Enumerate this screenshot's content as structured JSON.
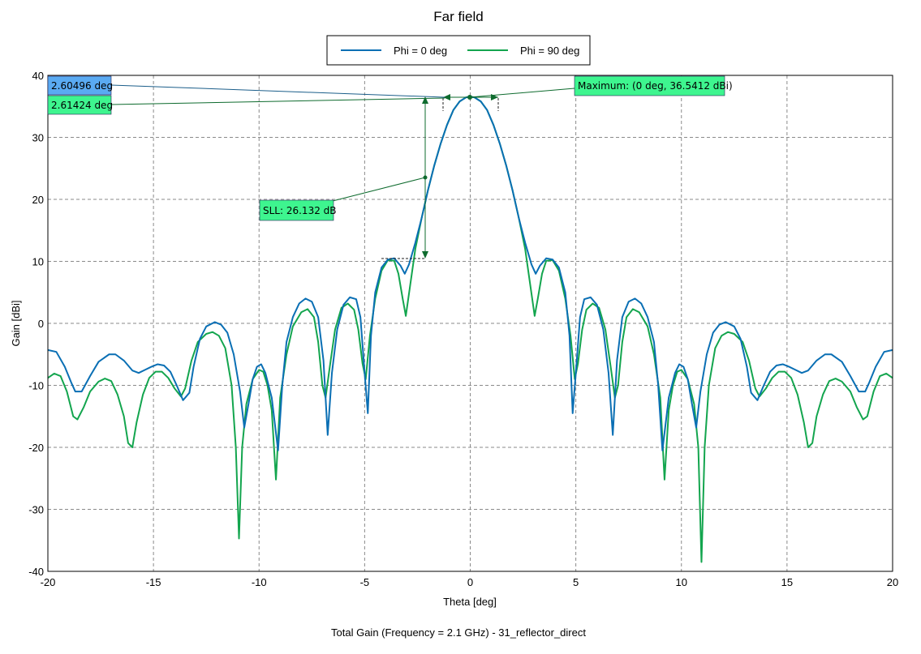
{
  "chart_data": {
    "type": "line",
    "title": "Far field",
    "xlabel": "Theta [deg]",
    "ylabel": "Gain [dBi]",
    "footer": "Total Gain (Frequency = 2.1 GHz) - 31_reflector_direct",
    "xlim": [
      -20,
      20
    ],
    "ylim": [
      -40,
      40
    ],
    "xticks": [
      -20,
      -15,
      -10,
      -5,
      0,
      5,
      10,
      15,
      20
    ],
    "yticks": [
      -40,
      -30,
      -20,
      -10,
      0,
      10,
      20,
      30,
      40
    ],
    "grid": true,
    "legend_position": "top-center",
    "series": [
      {
        "name": "Phi = 0 deg",
        "color": "#0a6fb4",
        "points": [
          [
            -20,
            -4.3
          ],
          [
            -19.6,
            -4.6
          ],
          [
            -19.2,
            -7
          ],
          [
            -18.9,
            -9.5
          ],
          [
            -18.7,
            -11
          ],
          [
            -18.4,
            -11
          ],
          [
            -18.0,
            -8.5
          ],
          [
            -17.6,
            -6.2
          ],
          [
            -17.1,
            -5
          ],
          [
            -16.8,
            -5
          ],
          [
            -16.4,
            -6
          ],
          [
            -16.0,
            -7.6
          ],
          [
            -15.7,
            -8
          ],
          [
            -15.4,
            -7.5
          ],
          [
            -15.1,
            -7
          ],
          [
            -14.8,
            -6.6
          ],
          [
            -14.5,
            -6.8
          ],
          [
            -14.2,
            -7.8
          ],
          [
            -13.9,
            -10
          ],
          [
            -13.6,
            -12.4
          ],
          [
            -13.3,
            -11.2
          ],
          [
            -13.1,
            -7
          ],
          [
            -12.8,
            -2.5
          ],
          [
            -12.5,
            -0.5
          ],
          [
            -12.1,
            0.2
          ],
          [
            -11.8,
            -0.2
          ],
          [
            -11.5,
            -1.5
          ],
          [
            -11.2,
            -5
          ],
          [
            -10.9,
            -11
          ],
          [
            -10.7,
            -16.8
          ],
          [
            -10.5,
            -13
          ],
          [
            -10.3,
            -9
          ],
          [
            -10.1,
            -7
          ],
          [
            -9.9,
            -6.6
          ],
          [
            -9.7,
            -8
          ],
          [
            -9.4,
            -12
          ],
          [
            -9.1,
            -20.5
          ],
          [
            -8.9,
            -10
          ],
          [
            -8.7,
            -3
          ],
          [
            -8.4,
            1
          ],
          [
            -8.1,
            3.2
          ],
          [
            -7.8,
            4
          ],
          [
            -7.5,
            3.5
          ],
          [
            -7.2,
            1
          ],
          [
            -6.95,
            -6
          ],
          [
            -6.75,
            -18
          ],
          [
            -6.55,
            -8
          ],
          [
            -6.3,
            -1
          ],
          [
            -6.0,
            3
          ],
          [
            -5.7,
            4.2
          ],
          [
            -5.4,
            3.9
          ],
          [
            -5.2,
            1
          ],
          [
            -5.0,
            -8
          ],
          [
            -4.85,
            -14.5
          ],
          [
            -4.7,
            -2
          ],
          [
            -4.5,
            5
          ],
          [
            -4.2,
            9
          ],
          [
            -3.9,
            10.3
          ],
          [
            -3.6,
            10.5
          ],
          [
            -3.3,
            9.3
          ],
          [
            -3.1,
            8
          ],
          [
            -2.9,
            9.5
          ],
          [
            -2.6,
            13
          ],
          [
            -2.3,
            17
          ],
          [
            -2.0,
            21.5
          ],
          [
            -1.7,
            25.5
          ],
          [
            -1.4,
            29
          ],
          [
            -1.1,
            32
          ],
          [
            -0.8,
            34.4
          ],
          [
            -0.5,
            35.8
          ],
          [
            -0.2,
            36.45
          ],
          [
            0,
            36.54
          ],
          [
            0.2,
            36.45
          ],
          [
            0.5,
            35.8
          ],
          [
            0.8,
            34.4
          ],
          [
            1.1,
            32
          ],
          [
            1.4,
            29
          ],
          [
            1.7,
            25.5
          ],
          [
            2.0,
            21.5
          ],
          [
            2.3,
            17
          ],
          [
            2.6,
            13
          ],
          [
            2.9,
            9.5
          ],
          [
            3.1,
            8
          ],
          [
            3.3,
            9.3
          ],
          [
            3.6,
            10.5
          ],
          [
            3.9,
            10.3
          ],
          [
            4.2,
            9
          ],
          [
            4.5,
            5
          ],
          [
            4.7,
            -2
          ],
          [
            4.85,
            -14.5
          ],
          [
            5.0,
            -8
          ],
          [
            5.2,
            1
          ],
          [
            5.4,
            3.9
          ],
          [
            5.7,
            4.2
          ],
          [
            6.0,
            3
          ],
          [
            6.3,
            -1
          ],
          [
            6.55,
            -8
          ],
          [
            6.75,
            -18
          ],
          [
            6.95,
            -6
          ],
          [
            7.2,
            1
          ],
          [
            7.5,
            3.5
          ],
          [
            7.8,
            4
          ],
          [
            8.1,
            3.2
          ],
          [
            8.4,
            1
          ],
          [
            8.7,
            -3
          ],
          [
            8.9,
            -10
          ],
          [
            9.1,
            -20.5
          ],
          [
            9.4,
            -12
          ],
          [
            9.7,
            -8
          ],
          [
            9.9,
            -6.6
          ],
          [
            10.1,
            -7
          ],
          [
            10.3,
            -9
          ],
          [
            10.5,
            -13
          ],
          [
            10.7,
            -16.8
          ],
          [
            10.9,
            -11
          ],
          [
            11.2,
            -5
          ],
          [
            11.5,
            -1.5
          ],
          [
            11.8,
            -0.2
          ],
          [
            12.1,
            0.2
          ],
          [
            12.5,
            -0.5
          ],
          [
            12.8,
            -2.5
          ],
          [
            13.1,
            -7
          ],
          [
            13.3,
            -11.2
          ],
          [
            13.6,
            -12.4
          ],
          [
            13.9,
            -10
          ],
          [
            14.2,
            -7.8
          ],
          [
            14.5,
            -6.8
          ],
          [
            14.8,
            -6.6
          ],
          [
            15.1,
            -7
          ],
          [
            15.4,
            -7.5
          ],
          [
            15.7,
            -8
          ],
          [
            16.0,
            -7.6
          ],
          [
            16.4,
            -6
          ],
          [
            16.8,
            -5
          ],
          [
            17.1,
            -5
          ],
          [
            17.6,
            -6.2
          ],
          [
            18.0,
            -8.5
          ],
          [
            18.4,
            -11
          ],
          [
            18.7,
            -11
          ],
          [
            18.9,
            -9.5
          ],
          [
            19.2,
            -7
          ],
          [
            19.6,
            -4.6
          ],
          [
            20,
            -4.3
          ]
        ]
      },
      {
        "name": "Phi = 90 deg",
        "color": "#13a54e",
        "points": [
          [
            -20,
            -8.8
          ],
          [
            -19.7,
            -8.1
          ],
          [
            -19.4,
            -8.5
          ],
          [
            -19.1,
            -11
          ],
          [
            -18.8,
            -15
          ],
          [
            -18.6,
            -15.5
          ],
          [
            -18.3,
            -13.5
          ],
          [
            -18.0,
            -11
          ],
          [
            -17.6,
            -9.4
          ],
          [
            -17.3,
            -8.9
          ],
          [
            -17.0,
            -9.3
          ],
          [
            -16.7,
            -11.5
          ],
          [
            -16.4,
            -15
          ],
          [
            -16.2,
            -19.3
          ],
          [
            -16.0,
            -20
          ],
          [
            -15.8,
            -16
          ],
          [
            -15.5,
            -11.5
          ],
          [
            -15.2,
            -8.8
          ],
          [
            -14.9,
            -7.8
          ],
          [
            -14.6,
            -7.8
          ],
          [
            -14.3,
            -8.8
          ],
          [
            -14.0,
            -10.5
          ],
          [
            -13.7,
            -11.8
          ],
          [
            -13.5,
            -10.5
          ],
          [
            -13.2,
            -6
          ],
          [
            -12.9,
            -3
          ],
          [
            -12.5,
            -1.7
          ],
          [
            -12.2,
            -1.4
          ],
          [
            -11.9,
            -2
          ],
          [
            -11.6,
            -4
          ],
          [
            -11.3,
            -10
          ],
          [
            -11.1,
            -20
          ],
          [
            -10.95,
            -34.7
          ],
          [
            -10.8,
            -20
          ],
          [
            -10.6,
            -13
          ],
          [
            -10.3,
            -9
          ],
          [
            -10.0,
            -7.5
          ],
          [
            -9.8,
            -7.8
          ],
          [
            -9.6,
            -10
          ],
          [
            -9.4,
            -14
          ],
          [
            -9.2,
            -25.2
          ],
          [
            -9.0,
            -12
          ],
          [
            -8.7,
            -5
          ],
          [
            -8.4,
            -0.5
          ],
          [
            -8.0,
            1.8
          ],
          [
            -7.7,
            2.3
          ],
          [
            -7.4,
            1
          ],
          [
            -7.2,
            -3
          ],
          [
            -7.0,
            -10
          ],
          [
            -6.85,
            -12
          ],
          [
            -6.65,
            -7
          ],
          [
            -6.4,
            -1
          ],
          [
            -6.1,
            2.5
          ],
          [
            -5.8,
            3.2
          ],
          [
            -5.5,
            2.2
          ],
          [
            -5.3,
            -1
          ],
          [
            -5.1,
            -6.5
          ],
          [
            -4.95,
            -9
          ],
          [
            -4.75,
            -2
          ],
          [
            -4.5,
            4
          ],
          [
            -4.2,
            8.5
          ],
          [
            -3.9,
            10.2
          ],
          [
            -3.6,
            10.1
          ],
          [
            -3.4,
            8
          ],
          [
            -3.2,
            4
          ],
          [
            -3.05,
            1.2
          ],
          [
            -2.85,
            6
          ],
          [
            -2.6,
            12
          ],
          [
            -2.3,
            17
          ],
          [
            -2.0,
            21.5
          ],
          [
            -1.7,
            25.5
          ],
          [
            -1.4,
            29
          ],
          [
            -1.1,
            32
          ],
          [
            -0.8,
            34.4
          ],
          [
            -0.5,
            35.8
          ],
          [
            -0.2,
            36.45
          ],
          [
            0,
            36.54
          ],
          [
            0.2,
            36.45
          ],
          [
            0.5,
            35.8
          ],
          [
            0.8,
            34.4
          ],
          [
            1.1,
            32
          ],
          [
            1.4,
            29
          ],
          [
            1.7,
            25.5
          ],
          [
            2.0,
            21.5
          ],
          [
            2.3,
            17
          ],
          [
            2.6,
            12
          ],
          [
            2.85,
            6
          ],
          [
            3.05,
            1.2
          ],
          [
            3.2,
            4
          ],
          [
            3.4,
            8
          ],
          [
            3.6,
            10.1
          ],
          [
            3.9,
            10.2
          ],
          [
            4.2,
            8.5
          ],
          [
            4.5,
            4
          ],
          [
            4.75,
            -2
          ],
          [
            4.95,
            -9
          ],
          [
            5.1,
            -6.5
          ],
          [
            5.3,
            -1
          ],
          [
            5.5,
            2.2
          ],
          [
            5.8,
            3.2
          ],
          [
            6.1,
            2.5
          ],
          [
            6.4,
            -1
          ],
          [
            6.65,
            -7
          ],
          [
            6.85,
            -12
          ],
          [
            7.0,
            -10
          ],
          [
            7.2,
            -3
          ],
          [
            7.4,
            1
          ],
          [
            7.7,
            2.3
          ],
          [
            8.0,
            1.8
          ],
          [
            8.4,
            -0.5
          ],
          [
            8.7,
            -5
          ],
          [
            9.0,
            -12
          ],
          [
            9.2,
            -25.2
          ],
          [
            9.4,
            -14
          ],
          [
            9.6,
            -10
          ],
          [
            9.8,
            -7.8
          ],
          [
            10.0,
            -7.5
          ],
          [
            10.3,
            -9
          ],
          [
            10.6,
            -13
          ],
          [
            10.8,
            -20
          ],
          [
            10.95,
            -38.5
          ],
          [
            11.1,
            -20
          ],
          [
            11.3,
            -10
          ],
          [
            11.6,
            -4
          ],
          [
            11.9,
            -2
          ],
          [
            12.2,
            -1.4
          ],
          [
            12.5,
            -1.7
          ],
          [
            12.9,
            -3
          ],
          [
            13.2,
            -6
          ],
          [
            13.5,
            -10.5
          ],
          [
            13.7,
            -11.8
          ],
          [
            14.0,
            -10.5
          ],
          [
            14.3,
            -8.8
          ],
          [
            14.6,
            -7.8
          ],
          [
            14.9,
            -7.8
          ],
          [
            15.2,
            -8.8
          ],
          [
            15.5,
            -11.5
          ],
          [
            15.8,
            -16
          ],
          [
            16.0,
            -20
          ],
          [
            16.2,
            -19.3
          ],
          [
            16.4,
            -15
          ],
          [
            16.7,
            -11.5
          ],
          [
            17.0,
            -9.3
          ],
          [
            17.3,
            -8.9
          ],
          [
            17.6,
            -9.4
          ],
          [
            18.0,
            -11
          ],
          [
            18.3,
            -13.5
          ],
          [
            18.6,
            -15.5
          ],
          [
            18.8,
            -15
          ],
          [
            19.1,
            -11
          ],
          [
            19.4,
            -8.5
          ],
          [
            19.7,
            -8.1
          ],
          [
            20,
            -8.8
          ]
        ]
      }
    ],
    "annotations": {
      "beamwidth_phi0": {
        "text": "2.60496 deg",
        "color": "#5aaaf2"
      },
      "beamwidth_phi90": {
        "text": "2.61424 deg",
        "color": "#3ef58f"
      },
      "maximum": {
        "text": "Maximum: (0 deg, 36.5412 dBi)",
        "color": "#3ef58f",
        "x": 0,
        "y": 36.5412
      },
      "sll": {
        "text": "SLL: 26.132 dB",
        "color": "#3ef58f",
        "value": 26.132
      }
    }
  }
}
